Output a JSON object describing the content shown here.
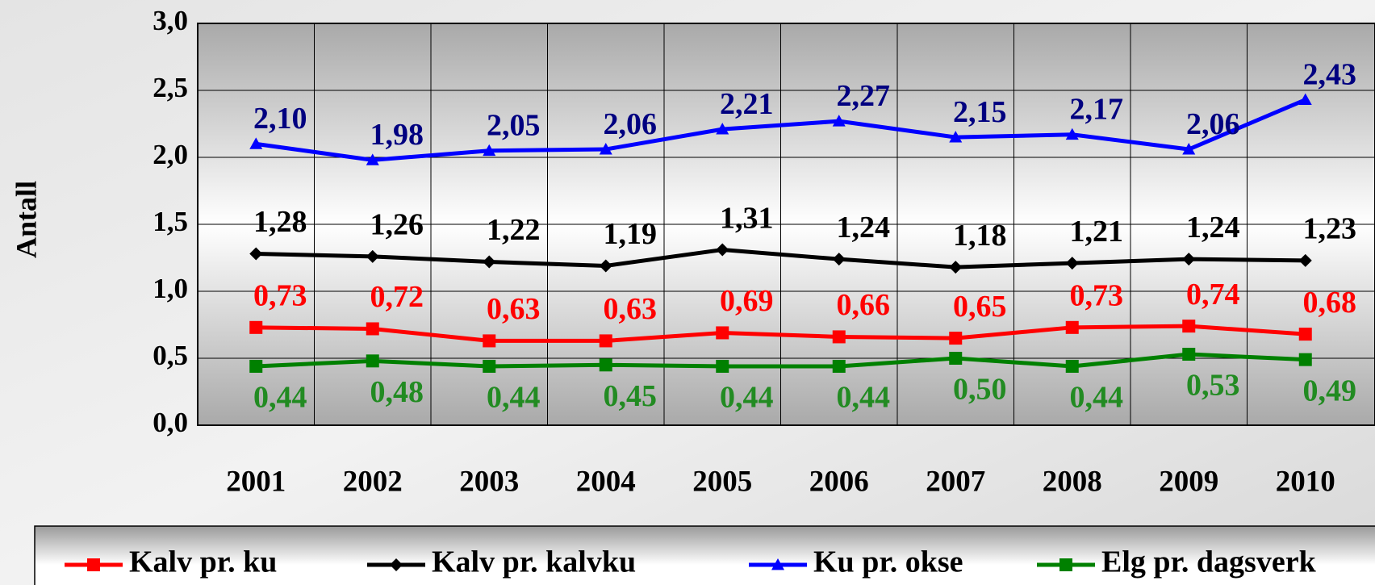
{
  "chart_data": {
    "type": "line",
    "y_label": "Antall",
    "categories": [
      "2001",
      "2002",
      "2003",
      "2004",
      "2005",
      "2006",
      "2007",
      "2008",
      "2009",
      "2010"
    ],
    "series": [
      {
        "name": "Kalv pr. ku",
        "color": "#ff0000",
        "marker": "square",
        "values": [
          0.73,
          0.72,
          0.63,
          0.63,
          0.69,
          0.66,
          0.65,
          0.73,
          0.74,
          0.68
        ],
        "value_labels": [
          "0,73",
          "0,72",
          "0,63",
          "0,63",
          "0,69",
          "0,66",
          "0,65",
          "0,73",
          "0,74",
          "0,68"
        ]
      },
      {
        "name": "Kalv pr. kalvku",
        "color": "#000000",
        "marker": "diamond",
        "values": [
          1.28,
          1.26,
          1.22,
          1.19,
          1.31,
          1.24,
          1.18,
          1.21,
          1.24,
          1.23
        ],
        "value_labels": [
          "1,28",
          "1,26",
          "1,22",
          "1,19",
          "1,31",
          "1,24",
          "1,18",
          "1,21",
          "1,24",
          "1,23"
        ]
      },
      {
        "name": "Ku pr. okse",
        "color": "#0000ff",
        "marker": "triangle",
        "values": [
          2.1,
          1.98,
          2.05,
          2.06,
          2.21,
          2.27,
          2.15,
          2.17,
          2.06,
          2.43
        ],
        "value_labels": [
          "2,10",
          "1,98",
          "2,05",
          "2,06",
          "2,21",
          "2,27",
          "2,15",
          "2,17",
          "2,06",
          "2,43"
        ]
      },
      {
        "name": "Elg pr. dagsverk",
        "color": "#008000",
        "marker": "square",
        "values": [
          0.44,
          0.48,
          0.44,
          0.45,
          0.44,
          0.44,
          0.5,
          0.44,
          0.53,
          0.49
        ],
        "value_labels": [
          "0,44",
          "0,48",
          "0,44",
          "0,45",
          "0,44",
          "0,44",
          "0,50",
          "0,44",
          "0,53",
          "0,49"
        ]
      }
    ],
    "ylim": [
      0,
      3
    ],
    "yticks": [
      {
        "value": 0,
        "label": "0,0"
      },
      {
        "value": 0.5,
        "label": "0,5"
      },
      {
        "value": 1,
        "label": "1,0"
      },
      {
        "value": 1.5,
        "label": "1,5"
      },
      {
        "value": 2,
        "label": "2,0"
      },
      {
        "value": 2.5,
        "label": "2,5"
      },
      {
        "value": 3,
        "label": "3,0"
      }
    ],
    "grid": true,
    "legend": "bottom"
  }
}
